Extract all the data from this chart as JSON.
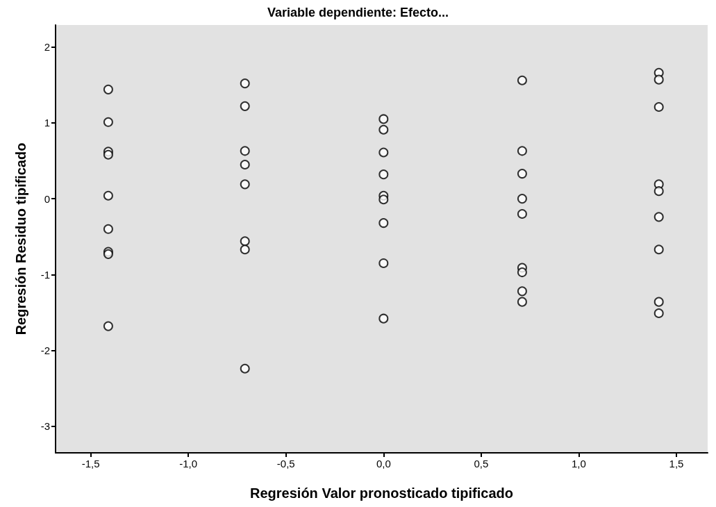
{
  "chart_data": {
    "type": "scatter",
    "title": "Variable dependiente: Efecto...",
    "xlabel": "Regresión Valor pronosticado tipificado",
    "ylabel": "Regresión Residuo tipificado",
    "x": [
      -1.41,
      -1.41,
      -1.41,
      -1.41,
      -1.41,
      -1.41,
      -1.41,
      -1.41,
      -1.41,
      -0.71,
      -0.71,
      -0.71,
      -0.71,
      -0.71,
      -0.71,
      -0.71,
      -0.71,
      0,
      0,
      0,
      0,
      0,
      0,
      0,
      0,
      0,
      0.71,
      0.71,
      0.71,
      0.71,
      0.71,
      0.71,
      0.71,
      0.71,
      0.71,
      1.41,
      1.41,
      1.41,
      1.41,
      1.41,
      1.41,
      1.41,
      1.41,
      1.41
    ],
    "series": [
      {
        "color": "#000000",
        "values": [
          1.44,
          1.01,
          0.62,
          0.58,
          0.04,
          -0.4,
          -0.7,
          -0.73,
          -1.68,
          1.52,
          1.22,
          0.63,
          0.45,
          0.19,
          -0.56,
          -0.67,
          -2.24,
          1.05,
          0.91,
          0.61,
          0.32,
          0.04,
          -0.01,
          -0.32,
          -0.85,
          -1.58,
          1.56,
          0.63,
          0.33,
          0,
          -0.2,
          -0.91,
          -0.97,
          -1.22,
          -1.36,
          1.66,
          1.57,
          1.21,
          0.19,
          0.1,
          -0.24,
          -0.67,
          -1.36,
          -1.51
        ]
      }
    ],
    "xlim": [
      -1.68,
      1.66
    ],
    "ylim": [
      -3.35,
      2.29
    ],
    "xticks": [
      {
        "value": -1.5,
        "label": "-1,5"
      },
      {
        "value": -1,
        "label": "-1,0"
      },
      {
        "value": -0.5,
        "label": "-0,5"
      },
      {
        "value": 0,
        "label": "0,0"
      },
      {
        "value": 0.5,
        "label": "0,5"
      },
      {
        "value": 1,
        "label": "1,0"
      },
      {
        "value": 1.5,
        "label": "1,5"
      }
    ],
    "yticks": [
      -3,
      -2,
      -1,
      0,
      1,
      2
    ],
    "marker": "circle",
    "grid": false
  }
}
